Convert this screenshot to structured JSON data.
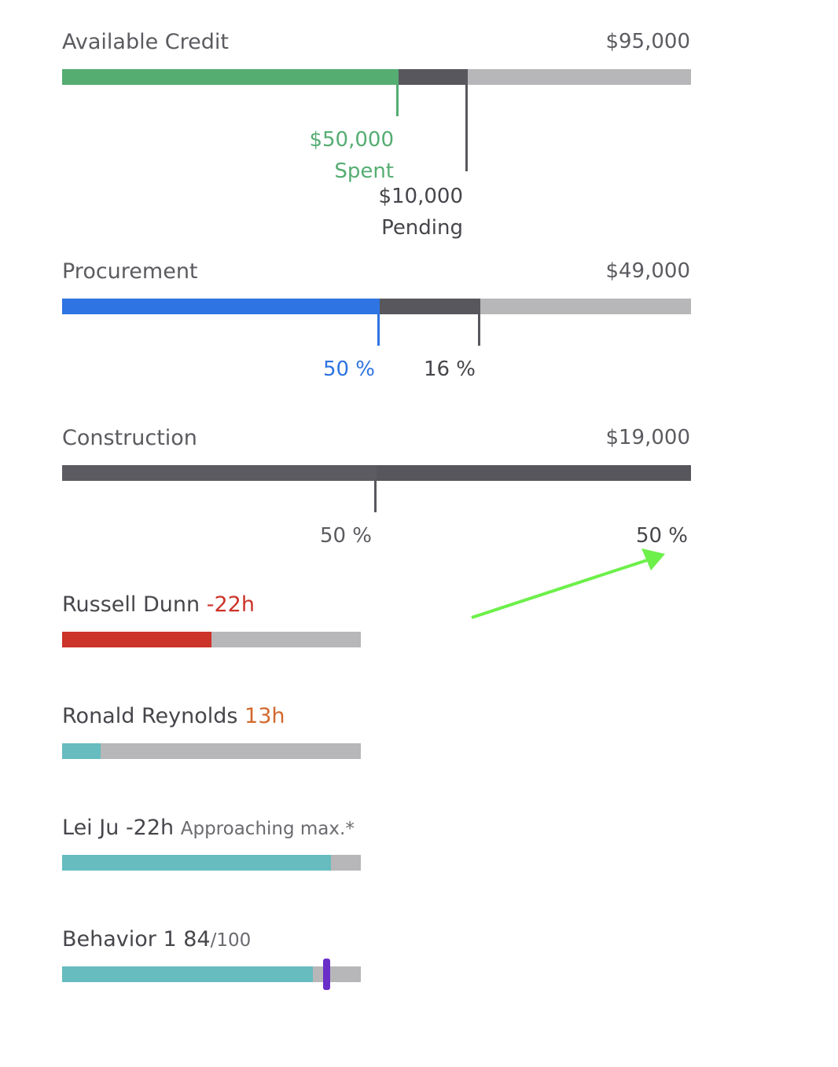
{
  "budgets": [
    {
      "name": "Available Credit",
      "total": "$95,000",
      "primary_fraction": 0.535,
      "secondary_fraction": 0.11,
      "primary_color": "#55ad72",
      "secondary_color": "#58575d",
      "primary_label": [
        "$50,000",
        "Spent"
      ],
      "secondary_label": [
        "$10,000",
        "Pending"
      ]
    },
    {
      "name": "Procurement",
      "total": "$49,000",
      "primary_fraction": 0.505,
      "secondary_fraction": 0.16,
      "primary_color": "#2e74e2",
      "secondary_color": "#58575d",
      "primary_label": "50 %",
      "secondary_label": "16 %"
    },
    {
      "name": "Construction",
      "total": "$19,000",
      "primary_fraction": 0.5,
      "secondary_fraction": 0.5,
      "primary_color": "#5c5b61",
      "secondary_color": "#57565c",
      "primary_label": "50 %",
      "secondary_label": "50 %"
    }
  ],
  "people": [
    {
      "name": "Russell Dunn",
      "hours": "-22h",
      "hours_color": "#cc3329",
      "note": "",
      "fill_fraction": 0.5,
      "fill_color": "#cc3329"
    },
    {
      "name": "Ronald Reynolds",
      "hours": "13h",
      "hours_color": "#d2692e",
      "note": "",
      "fill_fraction": 0.13,
      "fill_color": "#66bcbf"
    },
    {
      "name": "Lei Ju",
      "hours": "-22h",
      "hours_color": "#46464b",
      "note": "Approaching max.*",
      "fill_fraction": 0.9,
      "fill_color": "#66bcbf"
    }
  ],
  "behavior": {
    "name": "Behavior 1",
    "score": "84",
    "max": "/100",
    "fill_fraction": 0.84,
    "marker_fraction": 0.885,
    "fill_color": "#66bcbf",
    "marker_color": "#6a2ec9"
  },
  "colors": {
    "track": "#b7b7b9",
    "annotation_arrow": "#6df04a"
  }
}
